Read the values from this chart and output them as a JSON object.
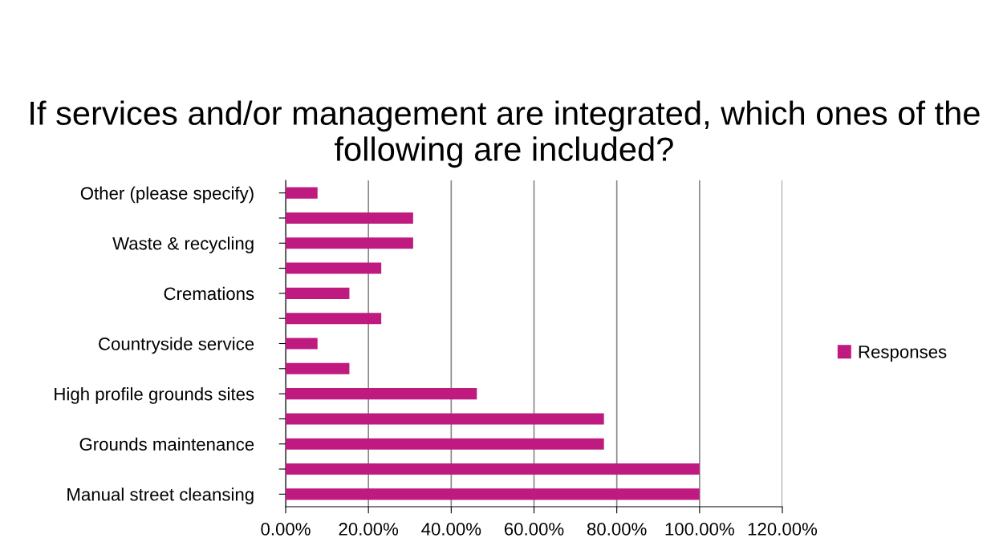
{
  "chart_data": {
    "type": "bar",
    "orientation": "horizontal",
    "title": "If services and/or management are integrated, which ones of the following are included?",
    "categories": [
      "Other (please specify)",
      null,
      "Waste & recycling",
      null,
      "Cremations",
      null,
      "Countryside service",
      null,
      "High profile grounds sites",
      null,
      "Grounds maintenance",
      null,
      "Manual street cleansing"
    ],
    "series": [
      {
        "name": "Responses",
        "color": "#bf1a80",
        "values": [
          7.7,
          30.8,
          30.8,
          23.1,
          15.4,
          23.1,
          7.7,
          15.4,
          46.2,
          76.9,
          76.9,
          100,
          100
        ]
      }
    ],
    "xlim": [
      0,
      120
    ],
    "xticks": [
      {
        "value": 0,
        "label": "0.00%"
      },
      {
        "value": 20,
        "label": "20.00%"
      },
      {
        "value": 40,
        "label": "40.00%"
      },
      {
        "value": 60,
        "label": "60.00%"
      },
      {
        "value": 80,
        "label": "80.00%"
      },
      {
        "value": 100,
        "label": "100.00%"
      },
      {
        "value": 120,
        "label": "120.00%"
      }
    ],
    "grid": "x",
    "legend": "right"
  }
}
